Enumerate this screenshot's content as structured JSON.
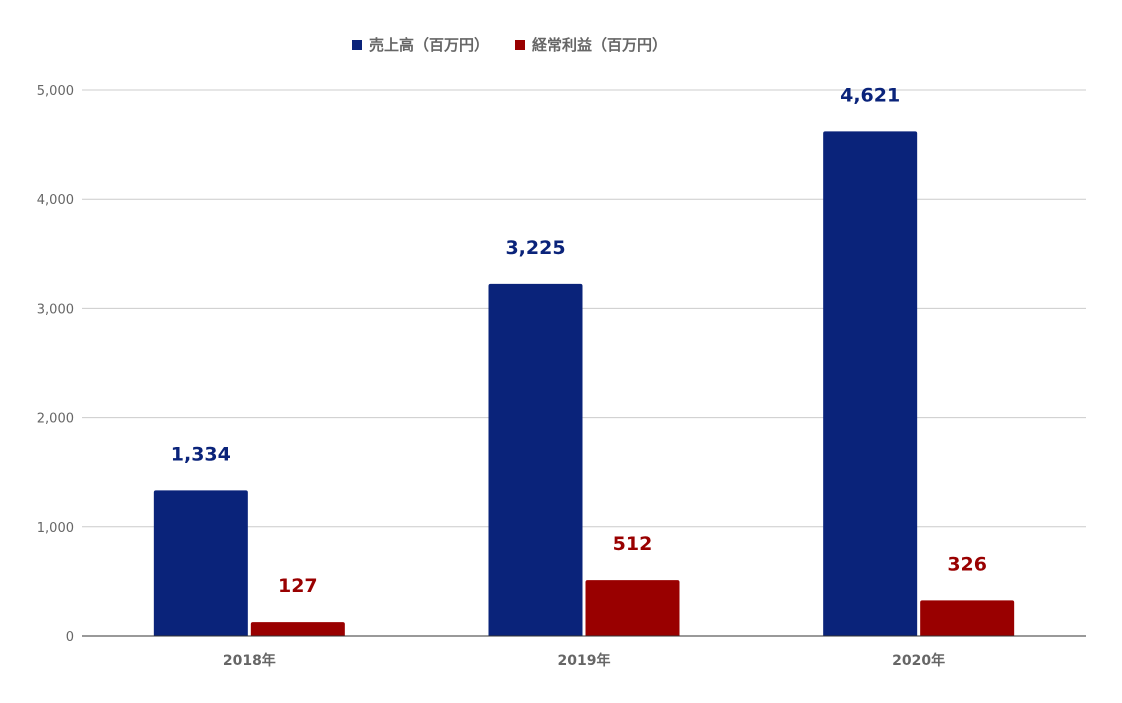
{
  "chart_data": {
    "type": "bar",
    "title": "",
    "xlabel": "",
    "ylabel": "",
    "categories": [
      "2018年",
      "2019年",
      "2020年"
    ],
    "series": [
      {
        "name": "売上高（百万円）",
        "values": [
          1334,
          3225,
          4621
        ],
        "labels": [
          "1,334",
          "3,225",
          "4,621"
        ],
        "color": "#0a237a"
      },
      {
        "name": "経常利益（百万円）",
        "values": [
          127,
          512,
          326
        ],
        "labels": [
          "127",
          "512",
          "326"
        ],
        "color": "#990000"
      }
    ],
    "ylim": [
      0,
      5000
    ],
    "yticks": [
      0,
      1000,
      2000,
      3000,
      4000,
      5000
    ],
    "ytick_labels": [
      "0",
      "1,000",
      "2,000",
      "3,000",
      "4,000",
      "5,000"
    ],
    "grid": true,
    "legend_position": "top-center"
  }
}
